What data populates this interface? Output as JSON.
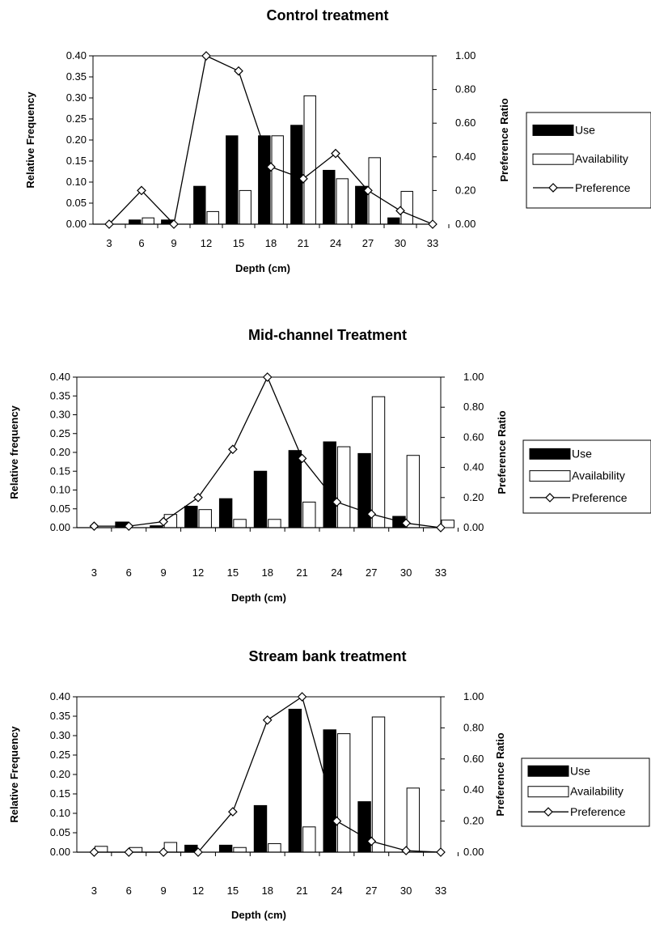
{
  "chart_data": [
    {
      "type": "bar",
      "title": "Control treatment",
      "xlabel": "Depth (cm)",
      "ylabel": "Relative Frequency",
      "y2label": "Preference Ratio",
      "categories": [
        "3",
        "6",
        "9",
        "12",
        "15",
        "18",
        "21",
        "24",
        "27",
        "30",
        "33"
      ],
      "ylim": [
        0,
        0.4
      ],
      "y2lim": [
        0,
        1
      ],
      "yticks": [
        "0.00",
        "0.05",
        "0.10",
        "0.15",
        "0.20",
        "0.25",
        "0.30",
        "0.35",
        "0.40"
      ],
      "y2ticks": [
        "0.00",
        "0.20",
        "0.40",
        "0.60",
        "0.80",
        "1.00"
      ],
      "series": [
        {
          "name": "Use",
          "kind": "bar",
          "color": "#000000",
          "values": [
            0,
            0.01,
            0.01,
            0.09,
            0.21,
            0.21,
            0.235,
            0.128,
            0.09,
            0.015,
            0
          ]
        },
        {
          "name": "Availability",
          "kind": "bar",
          "color": "#ffffff",
          "values": [
            0,
            0.015,
            0,
            0.03,
            0.08,
            0.21,
            0.305,
            0.108,
            0.158,
            0.078,
            0
          ]
        },
        {
          "name": "Preference",
          "kind": "line",
          "axis": "secondary",
          "values": [
            0,
            0.2,
            0,
            1.0,
            0.91,
            0.34,
            0.27,
            0.42,
            0.2,
            0.08,
            0
          ]
        }
      ],
      "legend_position": "right"
    },
    {
      "type": "bar",
      "title": "Mid-channel Treatment",
      "xlabel": "Depth (cm)",
      "ylabel": "Relative frequency",
      "y2label": "Preference Ratio",
      "categories": [
        "3",
        "6",
        "9",
        "12",
        "15",
        "18",
        "21",
        "24",
        "27",
        "30",
        "33"
      ],
      "ylim": [
        0,
        0.4
      ],
      "y2lim": [
        0,
        1
      ],
      "yticks": [
        "0.00",
        "0.05",
        "0.10",
        "0.15",
        "0.20",
        "0.25",
        "0.30",
        "0.35",
        "0.40"
      ],
      "y2ticks": [
        "0.00",
        "0.20",
        "0.40",
        "0.60",
        "0.80",
        "1.00"
      ],
      "series": [
        {
          "name": "Use",
          "kind": "bar",
          "color": "#000000",
          "values": [
            0,
            0.015,
            0.005,
            0.057,
            0.077,
            0.15,
            0.205,
            0.228,
            0.197,
            0.03,
            0
          ]
        },
        {
          "name": "Availability",
          "kind": "bar",
          "color": "#ffffff",
          "values": [
            0,
            0,
            0.035,
            0.048,
            0.022,
            0.022,
            0.068,
            0.215,
            0.348,
            0.192,
            0.02
          ]
        },
        {
          "name": "Preference",
          "kind": "line",
          "axis": "secondary",
          "values": [
            0.01,
            0.01,
            0.04,
            0.2,
            0.52,
            1.0,
            0.46,
            0.17,
            0.09,
            0.03,
            0
          ]
        }
      ],
      "legend_position": "right"
    },
    {
      "type": "bar",
      "title": "Stream bank treatment",
      "xlabel": "Depth (cm)",
      "ylabel": "Relative Frequency",
      "y2label": "Preference Ratio",
      "categories": [
        "3",
        "6",
        "9",
        "12",
        "15",
        "18",
        "21",
        "24",
        "27",
        "30",
        "33"
      ],
      "ylim": [
        0,
        0.4
      ],
      "y2lim": [
        0,
        1
      ],
      "yticks": [
        "0.00",
        "0.05",
        "0.10",
        "0.15",
        "0.20",
        "0.25",
        "0.30",
        "0.35",
        "0.40"
      ],
      "y2ticks": [
        "0.00",
        "0.20",
        "0.40",
        "0.60",
        "0.80",
        "1.00"
      ],
      "series": [
        {
          "name": "Use",
          "kind": "bar",
          "color": "#000000",
          "values": [
            0,
            0,
            0,
            0.018,
            0.018,
            0.12,
            0.368,
            0.315,
            0.13,
            0,
            0
          ]
        },
        {
          "name": "Availability",
          "kind": "bar",
          "color": "#ffffff",
          "values": [
            0.015,
            0.012,
            0.025,
            0,
            0.012,
            0.022,
            0.065,
            0.305,
            0.348,
            0.165,
            0
          ]
        },
        {
          "name": "Preference",
          "kind": "line",
          "axis": "secondary",
          "values": [
            0,
            0,
            0,
            0,
            0.26,
            0.85,
            1.0,
            0.2,
            0.07,
            0.01,
            0
          ]
        }
      ],
      "legend_position": "right"
    }
  ]
}
